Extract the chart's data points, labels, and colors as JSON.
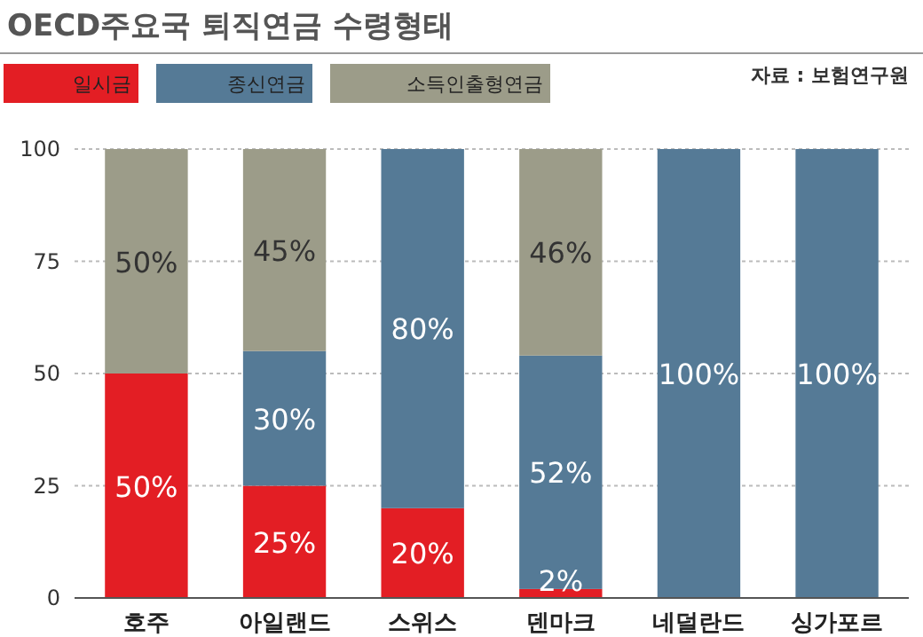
{
  "chart_data": {
    "type": "bar",
    "title": "OECD주요국 퇴직연금 수령형태",
    "annotations": [
      "자료 : 보험연구원"
    ],
    "categories": [
      "호주",
      "아일랜드",
      "스위스",
      "덴마크",
      "네덜란드",
      "싱가포르"
    ],
    "stacked": true,
    "ylim": [
      0,
      100
    ],
    "yticks": [
      0,
      25,
      50,
      75,
      100
    ],
    "grid": "y",
    "legend": "top left",
    "series": [
      {
        "name": "일시금",
        "color": "#e31e24",
        "values": [
          50,
          25,
          20,
          2,
          0,
          0
        ],
        "value_labels": [
          "50%",
          "25%",
          "20%",
          "2%",
          null,
          null
        ]
      },
      {
        "name": "종신연금",
        "color": "#557a96",
        "values": [
          0,
          30,
          80,
          52,
          100,
          100
        ],
        "value_labels": [
          null,
          "30%",
          "80%",
          "52%",
          "100%",
          "100%"
        ]
      },
      {
        "name": "소득인출형연금",
        "color": "#9c9c89",
        "values": [
          50,
          45,
          0,
          46,
          0,
          0
        ],
        "value_labels": [
          "50%",
          "45%",
          null,
          "46%",
          null,
          null
        ]
      }
    ]
  }
}
